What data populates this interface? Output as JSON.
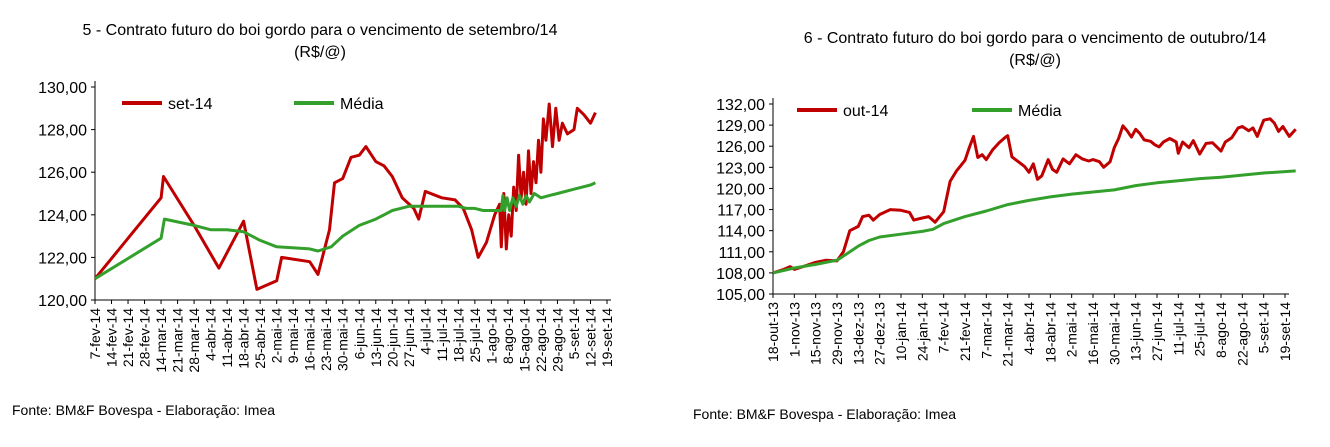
{
  "chart_data": [
    {
      "type": "line",
      "title": "5 - Contrato futuro do boi gordo para o vencimento de setembro/14 (R$/@)",
      "source": "Fonte: BM&F Bovespa -  Elaboração: Imea",
      "ylim": [
        120,
        130
      ],
      "yticks": [
        "120,00",
        "122,00",
        "124,00",
        "126,00",
        "128,00",
        "130,00"
      ],
      "yticks_values": [
        120,
        122,
        124,
        126,
        128,
        130
      ],
      "x_labels": [
        "7-fev-14",
        "14-fev-14",
        "21-fev-14",
        "28-fev-14",
        "14-mar-14",
        "21-mar-14",
        "28-mar-14",
        "4-abr-14",
        "11-abr-14",
        "18-abr-14",
        "25-abr-14",
        "2-mai-14",
        "9-mai-14",
        "16-mai-14",
        "23-mai-14",
        "30-mai-14",
        "6-jun-14",
        "13-jun-14",
        "20-jun-14",
        "27-jun-14",
        "4-jul-14",
        "11-jul-14",
        "18-jul-14",
        "25-jul-14",
        "1-ago-14",
        "8-ago-14",
        "15-ago-14",
        "22-ago-14",
        "29-ago-14",
        "5-set-14",
        "12-set-14",
        "19-set-14"
      ],
      "legend_position": "top-left",
      "grid": false,
      "series": [
        {
          "name": "set-14",
          "color": "#c00000",
          "points": [
            [
              0,
              121.0
            ],
            [
              4,
              124.8
            ],
            [
              4.15,
              125.8
            ],
            [
              6,
              123.5
            ],
            [
              7.5,
              121.5
            ],
            [
              9,
              123.7
            ],
            [
              9.8,
              120.5
            ],
            [
              11,
              120.9
            ],
            [
              11.3,
              122.0
            ],
            [
              13,
              121.8
            ],
            [
              13.5,
              121.2
            ],
            [
              14.2,
              123.3
            ],
            [
              14.5,
              125.5
            ],
            [
              15,
              125.7
            ],
            [
              15.5,
              126.7
            ],
            [
              16,
              126.8
            ],
            [
              16.4,
              127.2
            ],
            [
              17,
              126.5
            ],
            [
              17.5,
              126.3
            ],
            [
              18,
              125.8
            ],
            [
              18.6,
              124.8
            ],
            [
              19.3,
              124.3
            ],
            [
              19.6,
              123.8
            ],
            [
              20,
              125.1
            ],
            [
              21,
              124.8
            ],
            [
              21.8,
              124.7
            ],
            [
              22.3,
              124.3
            ],
            [
              22.8,
              123.3
            ],
            [
              23.2,
              122.0
            ],
            [
              23.7,
              122.7
            ],
            [
              24.2,
              124.0
            ],
            [
              24.5,
              124.5
            ],
            [
              24.6,
              122.5
            ],
            [
              24.75,
              125.0
            ],
            [
              24.9,
              122.4
            ],
            [
              25.05,
              124.0
            ],
            [
              25.2,
              123.0
            ],
            [
              25.35,
              125.3
            ],
            [
              25.5,
              124.2
            ],
            [
              25.65,
              126.8
            ],
            [
              25.8,
              124.8
            ],
            [
              25.95,
              126.0
            ],
            [
              26.1,
              124.5
            ],
            [
              26.25,
              127.0
            ],
            [
              26.4,
              125.0
            ],
            [
              26.55,
              126.5
            ],
            [
              26.7,
              125.5
            ],
            [
              26.85,
              127.5
            ],
            [
              27,
              126.0
            ],
            [
              27.15,
              128.5
            ],
            [
              27.3,
              127.5
            ],
            [
              27.5,
              129.2
            ],
            [
              27.7,
              127.2
            ],
            [
              27.9,
              129.0
            ],
            [
              28.1,
              127.5
            ],
            [
              28.3,
              128.3
            ],
            [
              28.6,
              127.8
            ],
            [
              29,
              128.0
            ],
            [
              29.2,
              129.0
            ],
            [
              29.6,
              128.7
            ],
            [
              30,
              128.3
            ],
            [
              30.3,
              128.8
            ]
          ]
        },
        {
          "name": "Média",
          "color": "#33a02c",
          "points": [
            [
              0,
              121.0
            ],
            [
              4,
              122.9
            ],
            [
              4.2,
              123.8
            ],
            [
              6,
              123.5
            ],
            [
              7,
              123.3
            ],
            [
              8,
              123.3
            ],
            [
              9,
              123.2
            ],
            [
              10,
              122.8
            ],
            [
              11,
              122.5
            ],
            [
              13,
              122.4
            ],
            [
              13.5,
              122.3
            ],
            [
              14.3,
              122.5
            ],
            [
              15,
              123.0
            ],
            [
              16,
              123.5
            ],
            [
              17,
              123.8
            ],
            [
              18,
              124.2
            ],
            [
              18.5,
              124.3
            ],
            [
              19,
              124.4
            ],
            [
              20,
              124.4
            ],
            [
              21,
              124.4
            ],
            [
              22,
              124.4
            ],
            [
              22.5,
              124.3
            ],
            [
              23,
              124.3
            ],
            [
              23.5,
              124.2
            ],
            [
              24,
              124.2
            ],
            [
              24.6,
              124.2
            ],
            [
              24.7,
              124.9
            ],
            [
              24.8,
              124.2
            ],
            [
              24.95,
              124.8
            ],
            [
              25.1,
              124.2
            ],
            [
              25.3,
              124.8
            ],
            [
              25.5,
              124.4
            ],
            [
              25.7,
              124.9
            ],
            [
              25.9,
              124.5
            ],
            [
              26.1,
              124.9
            ],
            [
              26.3,
              124.6
            ],
            [
              26.6,
              125.0
            ],
            [
              27,
              124.8
            ],
            [
              27.5,
              124.9
            ],
            [
              28,
              125.0
            ],
            [
              29,
              125.2
            ],
            [
              30,
              125.4
            ],
            [
              30.3,
              125.5
            ]
          ]
        }
      ]
    },
    {
      "type": "line",
      "title": "6 - Contrato futuro do boi gordo para o vencimento de outubro/14 (R$/@)",
      "source": "Fonte: BM&F Bovespa - Elaboração: Imea",
      "ylim": [
        105,
        132
      ],
      "yticks": [
        "105,00",
        "108,00",
        "111,00",
        "114,00",
        "117,00",
        "120,00",
        "123,00",
        "126,00",
        "129,00",
        "132,00"
      ],
      "yticks_values": [
        105,
        108,
        111,
        114,
        117,
        120,
        123,
        126,
        129,
        132
      ],
      "x_labels": [
        "18-out-13",
        "1-nov-13",
        "15-nov-13",
        "29-nov-13",
        "13-dez-13",
        "27-dez-13",
        "10-jan-14",
        "24-jan-14",
        "7-fev-14",
        "21-fev-14",
        "7-mar-14",
        "21-mar-14",
        "4-abr-14",
        "18-abr-14",
        "2-mai-14",
        "16-mai-14",
        "30-mai-14",
        "13-jun-14",
        "27-jun-14",
        "11-jul-14",
        "25-jul-14",
        "8-ago-14",
        "22-ago-14",
        "5-set-14",
        "19-set-14"
      ],
      "legend_position": "top-left",
      "grid": false,
      "series": [
        {
          "name": "out-14",
          "color": "#c00000",
          "points": [
            [
              0,
              108
            ],
            [
              0.5,
              108.5
            ],
            [
              0.8,
              108.9
            ],
            [
              1,
              108.5
            ],
            [
              1.5,
              109
            ],
            [
              2,
              109.5
            ],
            [
              2.5,
              109.8
            ],
            [
              3,
              109.7
            ],
            [
              3.3,
              111
            ],
            [
              3.6,
              114
            ],
            [
              4,
              114.6
            ],
            [
              4.2,
              116
            ],
            [
              4.5,
              116.2
            ],
            [
              4.7,
              115.5
            ],
            [
              5,
              116.3
            ],
            [
              5.5,
              117
            ],
            [
              6,
              116.9
            ],
            [
              6.4,
              116.6
            ],
            [
              6.6,
              115.5
            ],
            [
              7,
              115.8
            ],
            [
              7.3,
              116
            ],
            [
              7.6,
              115.2
            ],
            [
              8,
              116.7
            ],
            [
              8.3,
              121
            ],
            [
              8.6,
              122.5
            ],
            [
              9,
              124
            ],
            [
              9.2,
              125.8
            ],
            [
              9.4,
              127.4
            ],
            [
              9.6,
              124.4
            ],
            [
              9.8,
              124.8
            ],
            [
              10,
              124.1
            ],
            [
              10.3,
              125.5
            ],
            [
              10.6,
              126.5
            ],
            [
              10.9,
              127.3
            ],
            [
              11,
              127.5
            ],
            [
              11.2,
              124.5
            ],
            [
              11.5,
              123.8
            ],
            [
              11.8,
              123.1
            ],
            [
              12,
              122.3
            ],
            [
              12.2,
              123.5
            ],
            [
              12.4,
              121.3
            ],
            [
              12.6,
              121.8
            ],
            [
              12.9,
              124.1
            ],
            [
              13.1,
              122.7
            ],
            [
              13.3,
              122.3
            ],
            [
              13.6,
              124.2
            ],
            [
              13.9,
              123.5
            ],
            [
              14.2,
              124.8
            ],
            [
              14.5,
              124.2
            ],
            [
              14.8,
              123.9
            ],
            [
              15,
              124.1
            ],
            [
              15.3,
              123.8
            ],
            [
              15.5,
              123.0
            ],
            [
              15.8,
              123.8
            ],
            [
              16,
              125.8
            ],
            [
              16.2,
              127.1
            ],
            [
              16.4,
              128.9
            ],
            [
              16.6,
              128.2
            ],
            [
              16.8,
              127.3
            ],
            [
              17,
              128.4
            ],
            [
              17.2,
              127.8
            ],
            [
              17.4,
              126.9
            ],
            [
              17.7,
              126.7
            ],
            [
              17.9,
              126.2
            ],
            [
              18.1,
              125.9
            ],
            [
              18.3,
              126.6
            ],
            [
              18.6,
              127.1
            ],
            [
              18.9,
              126.6
            ],
            [
              19,
              125.0
            ],
            [
              19.2,
              126.6
            ],
            [
              19.5,
              125.8
            ],
            [
              19.7,
              126.8
            ],
            [
              20,
              124.9
            ],
            [
              20.3,
              126.4
            ],
            [
              20.6,
              126.5
            ],
            [
              21,
              125.3
            ],
            [
              21.2,
              126.6
            ],
            [
              21.5,
              127.2
            ],
            [
              21.8,
              128.6
            ],
            [
              22,
              128.8
            ],
            [
              22.3,
              128.2
            ],
            [
              22.5,
              128.6
            ],
            [
              22.7,
              127.4
            ],
            [
              23,
              129.7
            ],
            [
              23.3,
              129.9
            ],
            [
              23.5,
              129.3
            ],
            [
              23.7,
              128.1
            ],
            [
              23.9,
              128.8
            ],
            [
              24.2,
              127.4
            ],
            [
              24.5,
              128.4
            ]
          ]
        },
        {
          "name": "Média",
          "color": "#33a02c",
          "points": [
            [
              0,
              108
            ],
            [
              1,
              108.7
            ],
            [
              2,
              109.2
            ],
            [
              3,
              109.8
            ],
            [
              3.5,
              110.8
            ],
            [
              4,
              111.8
            ],
            [
              4.5,
              112.6
            ],
            [
              5,
              113.1
            ],
            [
              6,
              113.5
            ],
            [
              7,
              113.9
            ],
            [
              7.5,
              114.2
            ],
            [
              8,
              115
            ],
            [
              9,
              116
            ],
            [
              10,
              116.8
            ],
            [
              11,
              117.7
            ],
            [
              12,
              118.3
            ],
            [
              13,
              118.8
            ],
            [
              14,
              119.2
            ],
            [
              15,
              119.5
            ],
            [
              16,
              119.8
            ],
            [
              17,
              120.4
            ],
            [
              18,
              120.8
            ],
            [
              19,
              121.1
            ],
            [
              20,
              121.4
            ],
            [
              21,
              121.6
            ],
            [
              22,
              121.9
            ],
            [
              23,
              122.2
            ],
            [
              24,
              122.4
            ],
            [
              24.5,
              122.5
            ]
          ]
        }
      ]
    }
  ]
}
